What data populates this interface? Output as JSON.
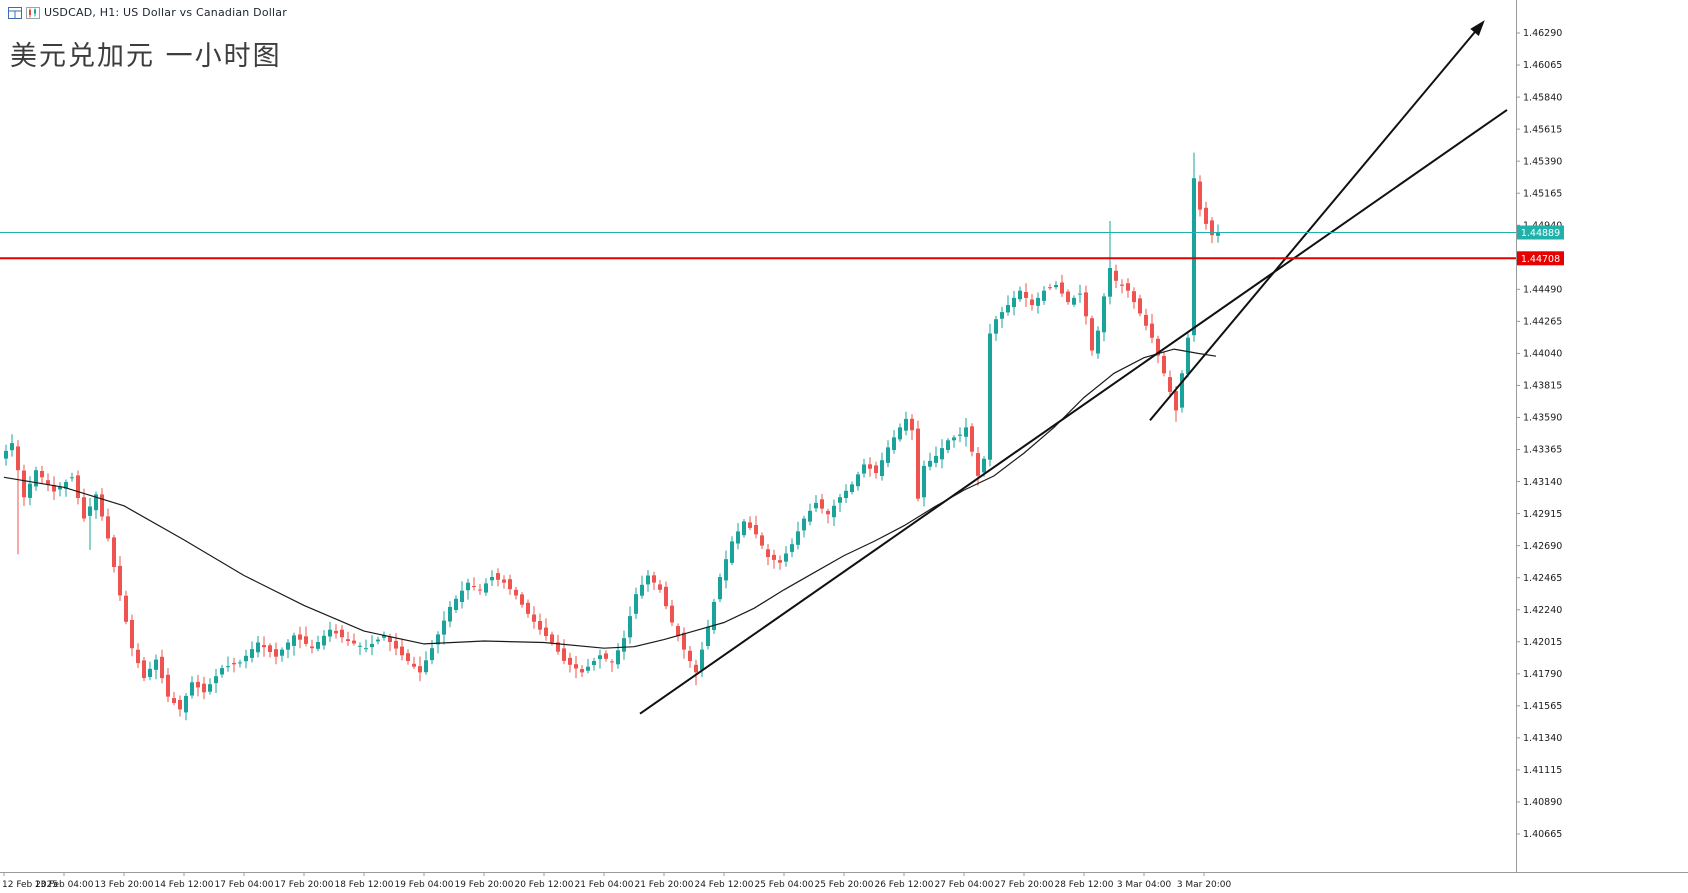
{
  "header": {
    "symbol_line": "USDCAD, H1:  US Dollar vs Canadian Dollar",
    "title": "美元兑加元 一小时图"
  },
  "chart_data": {
    "type": "candlestick",
    "symbol": "USDCAD",
    "timeframe": "H1",
    "description": "US Dollar vs Canadian Dollar",
    "title": "美元兑加元 一小时图",
    "current_bid": 1.44889,
    "marked_level": 1.44708,
    "style": {
      "up_color": "#19a39a",
      "down_color": "#ef5350",
      "ma_color": "#1b1b1b",
      "trendline_color": "#111111",
      "axis_color": "#9b9b9b",
      "text_color": "#1a1a1a",
      "bid_line_color": "#20b2aa",
      "level_line_color": "#e60000",
      "background": "#ffffff"
    },
    "y_axis": {
      "min": 1.40665,
      "max": 1.4629,
      "labels": [
        "1.46290",
        "1.46065",
        "1.45840",
        "1.45615",
        "1.45390",
        "1.45165",
        "1.44940",
        "1.44490",
        "1.44265",
        "1.44040",
        "1.43815",
        "1.43590",
        "1.43365",
        "1.43140",
        "1.42915",
        "1.42690",
        "1.42465",
        "1.42240",
        "1.42015",
        "1.41790",
        "1.41565",
        "1.41340",
        "1.41115",
        "1.40890",
        "1.40665"
      ]
    },
    "x_axis": {
      "labels": [
        "12 Feb 2025",
        "13 Feb 04:00",
        "13 Feb 20:00",
        "14 Feb 12:00",
        "17 Feb 04:00",
        "17 Feb 20:00",
        "18 Feb 12:00",
        "19 Feb 04:00",
        "19 Feb 20:00",
        "20 Feb 12:00",
        "21 Feb 04:00",
        "21 Feb 20:00",
        "24 Feb 12:00",
        "25 Feb 04:00",
        "25 Feb 20:00",
        "26 Feb 12:00",
        "27 Feb 04:00",
        "27 Feb 20:00",
        "28 Feb 12:00",
        "3 Mar 04:00",
        "3 Mar 20:00"
      ]
    },
    "levels": [
      {
        "name": "bid-price-line",
        "label": "1.44889",
        "price": 1.44889,
        "color": "#20b2aa",
        "width": 1
      },
      {
        "name": "resistance-line",
        "label": "1.44708",
        "price": 1.44708,
        "color": "#e60000",
        "width": 2
      }
    ],
    "trendlines": [
      {
        "name": "support-trendline",
        "i1": 106,
        "p1": 1.4151,
        "i2": 250.5,
        "p2": 1.4575,
        "arrow": false
      },
      {
        "name": "projection-arrow-line",
        "i1": 191,
        "p1": 1.4357,
        "i2": 246.8,
        "p2": 1.4638,
        "arrow": true
      }
    ],
    "moving_average": [
      [
        0,
        1.4317
      ],
      [
        10,
        1.431
      ],
      [
        20,
        1.4297
      ],
      [
        30,
        1.4273
      ],
      [
        40,
        1.4248
      ],
      [
        50,
        1.4227
      ],
      [
        60,
        1.4209
      ],
      [
        70,
        1.42
      ],
      [
        80,
        1.4202
      ],
      [
        90,
        1.4201
      ],
      [
        100,
        1.4197
      ],
      [
        105,
        1.4198
      ],
      [
        110,
        1.4203
      ],
      [
        115,
        1.4209
      ],
      [
        120,
        1.4215
      ],
      [
        125,
        1.4225
      ],
      [
        130,
        1.4238
      ],
      [
        135,
        1.425
      ],
      [
        140,
        1.4262
      ],
      [
        145,
        1.4272
      ],
      [
        150,
        1.4283
      ],
      [
        155,
        1.4296
      ],
      [
        160,
        1.4308
      ],
      [
        165,
        1.4318
      ],
      [
        170,
        1.4334
      ],
      [
        175,
        1.4352
      ],
      [
        180,
        1.4373
      ],
      [
        185,
        1.439
      ],
      [
        190,
        1.4401
      ],
      [
        195,
        1.4407
      ],
      [
        199,
        1.4404
      ],
      [
        202,
        1.4402
      ]
    ],
    "candles": {
      "count": 203,
      "path_anchors": [
        [
          0,
          1.433
        ],
        [
          2,
          1.4341
        ],
        [
          4,
          1.4303
        ],
        [
          6,
          1.4322
        ],
        [
          9,
          1.4307
        ],
        [
          12,
          1.4317
        ],
        [
          14,
          1.4288
        ],
        [
          16,
          1.4305
        ],
        [
          18,
          1.4274
        ],
        [
          20,
          1.4234
        ],
        [
          22,
          1.4197
        ],
        [
          24,
          1.4176
        ],
        [
          26,
          1.4189
        ],
        [
          28,
          1.4163
        ],
        [
          30,
          1.4154
        ],
        [
          32,
          1.4173
        ],
        [
          34,
          1.4166
        ],
        [
          37,
          1.4183
        ],
        [
          40,
          1.4187
        ],
        [
          43,
          1.4201
        ],
        [
          46,
          1.4191
        ],
        [
          49,
          1.4206
        ],
        [
          52,
          1.4197
        ],
        [
          55,
          1.421
        ],
        [
          58,
          1.4202
        ],
        [
          61,
          1.4197
        ],
        [
          64,
          1.4206
        ],
        [
          67,
          1.4192
        ],
        [
          70,
          1.418
        ],
        [
          72,
          1.4197
        ],
        [
          75,
          1.4226
        ],
        [
          78,
          1.4243
        ],
        [
          80,
          1.4238
        ],
        [
          82,
          1.4247
        ],
        [
          84,
          1.4243
        ],
        [
          86,
          1.4234
        ],
        [
          88,
          1.4221
        ],
        [
          90,
          1.421
        ],
        [
          92,
          1.4201
        ],
        [
          94,
          1.4188
        ],
        [
          97,
          1.418
        ],
        [
          100,
          1.4192
        ],
        [
          102,
          1.4187
        ],
        [
          104,
          1.4204
        ],
        [
          106,
          1.4235
        ],
        [
          108,
          1.4248
        ],
        [
          110,
          1.4238
        ],
        [
          112,
          1.4215
        ],
        [
          114,
          1.4196
        ],
        [
          116,
          1.418
        ],
        [
          118,
          1.4212
        ],
        [
          120,
          1.4247
        ],
        [
          122,
          1.4272
        ],
        [
          124,
          1.4286
        ],
        [
          126,
          1.4277
        ],
        [
          128,
          1.4261
        ],
        [
          130,
          1.4257
        ],
        [
          132,
          1.427
        ],
        [
          134,
          1.4288
        ],
        [
          136,
          1.4299
        ],
        [
          138,
          1.4291
        ],
        [
          140,
          1.4303
        ],
        [
          142,
          1.4312
        ],
        [
          144,
          1.4326
        ],
        [
          146,
          1.432
        ],
        [
          148,
          1.4338
        ],
        [
          150,
          1.4352
        ],
        [
          151,
          1.4358
        ],
        [
          152,
          1.435
        ],
        [
          153,
          1.4302
        ],
        [
          154,
          1.4325
        ],
        [
          156,
          1.4332
        ],
        [
          158,
          1.4343
        ],
        [
          160,
          1.4347
        ],
        [
          161,
          1.4352
        ],
        [
          162,
          1.4335
        ],
        [
          163,
          1.4318
        ],
        [
          164,
          1.433
        ],
        [
          165,
          1.4418
        ],
        [
          166,
          1.4428
        ],
        [
          168,
          1.4438
        ],
        [
          170,
          1.4448
        ],
        [
          172,
          1.4438
        ],
        [
          174,
          1.4448
        ],
        [
          176,
          1.4452
        ],
        [
          178,
          1.444
        ],
        [
          180,
          1.4446
        ],
        [
          181,
          1.443
        ],
        [
          182,
          1.4406
        ],
        [
          183,
          1.442
        ],
        [
          184,
          1.4444
        ],
        [
          185,
          1.4464
        ],
        [
          186,
          1.4455
        ],
        [
          188,
          1.4448
        ],
        [
          190,
          1.4432
        ],
        [
          192,
          1.4415
        ],
        [
          194,
          1.439
        ],
        [
          196,
          1.4364
        ],
        [
          197,
          1.439
        ],
        [
          198,
          1.4415
        ],
        [
          199,
          1.4527
        ],
        [
          200,
          1.4505
        ],
        [
          201,
          1.4495
        ],
        [
          202,
          1.4487
        ],
        [
          203,
          1.44889
        ]
      ],
      "spikes": [
        {
          "i": 2,
          "low": 1.4263
        },
        {
          "i": 14,
          "low": 1.4266
        },
        {
          "i": 29,
          "low": 1.4149
        },
        {
          "i": 115,
          "low": 1.4171
        },
        {
          "i": 150,
          "high": 1.4363
        },
        {
          "i": 152,
          "low": 1.43
        },
        {
          "i": 162,
          "low": 1.4311
        },
        {
          "i": 184,
          "high": 1.4497
        },
        {
          "i": 195,
          "low": 1.4356
        },
        {
          "i": 198,
          "high": 1.4545
        }
      ]
    },
    "layout_hints": {
      "grid": false,
      "legend": false,
      "price_axis_side": "right",
      "time_axis_side": "bottom"
    }
  }
}
